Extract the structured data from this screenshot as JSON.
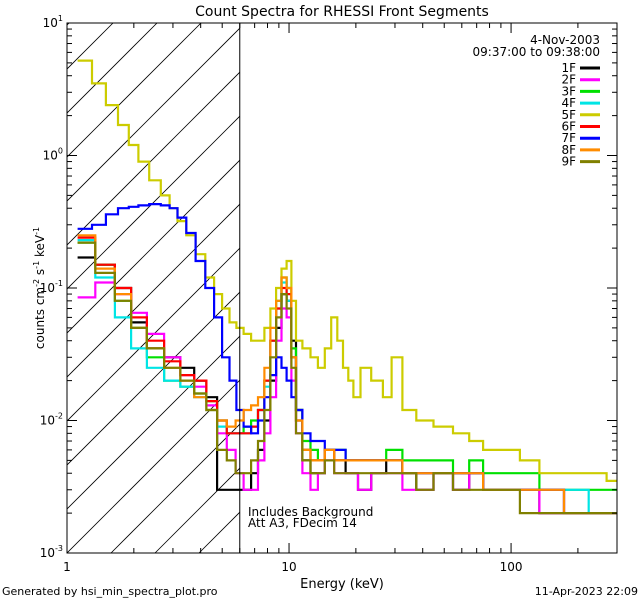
{
  "chart_data": {
    "type": "line",
    "title": "Count Spectra for RHESSI Front Segments",
    "xlabel": "Energy (keV)",
    "ylabel_main": "counts cm",
    "ylabel_sup1": "-2",
    "ylabel_mid": " s",
    "ylabel_sup2": "-1",
    "ylabel_end": " keV",
    "ylabel_sup3": "-1",
    "xscale": "log",
    "yscale": "log",
    "xlim": [
      1,
      300
    ],
    "ylim": [
      0.001,
      10
    ],
    "x_ticks": [
      {
        "value": 1,
        "label": "1"
      },
      {
        "value": 10,
        "label": "10"
      },
      {
        "value": 100,
        "label": "100"
      }
    ],
    "y_ticks": [
      {
        "value": 0.001,
        "base": "10",
        "exp": "-3"
      },
      {
        "value": 0.01,
        "base": "10",
        "exp": "-2"
      },
      {
        "value": 0.1,
        "base": "10",
        "exp": "-1"
      },
      {
        "value": 1,
        "base": "10",
        "exp": "0"
      },
      {
        "value": 10,
        "base": "10",
        "exp": "1"
      }
    ],
    "date": "4-Nov-2003",
    "time_range": "09:37:00 to 09:38:00",
    "attenuator_line_kev": 6,
    "annotation_line1": "Includes Background",
    "annotation_line2": "Att A3, FDecim 14",
    "series": [
      {
        "name": "1F",
        "color": "#000000",
        "x": [
          1.2,
          1.5,
          1.8,
          2.1,
          2.5,
          3.0,
          3.5,
          4.0,
          4.5,
          5.0,
          5.5,
          6.0,
          6.5,
          7.0,
          7.5,
          8.0,
          8.5,
          9.0,
          9.5,
          10,
          10.5,
          11,
          12,
          13,
          14,
          15,
          17,
          19,
          22,
          25,
          30,
          35,
          40,
          50,
          60,
          70,
          80,
          100,
          120,
          150,
          200,
          250,
          290
        ],
        "y": [
          0.17,
          0.15,
          0.1,
          0.055,
          0.035,
          0.03,
          0.025,
          0.02,
          0.015,
          0.003,
          0.003,
          0.003,
          0.003,
          0.004,
          0.006,
          0.01,
          0.02,
          0.05,
          0.09,
          0.08,
          0.04,
          0.012,
          0.005,
          0.004,
          0.004,
          0.006,
          0.005,
          0.004,
          0.003,
          0.004,
          0.005,
          0.004,
          0.003,
          0.004,
          0.003,
          0.004,
          0.003,
          0.003,
          0.003,
          0.002,
          0.002,
          0.002,
          0.002
        ]
      },
      {
        "name": "2F",
        "color": "#ff00ff",
        "x": [
          1.2,
          1.5,
          1.8,
          2.1,
          2.5,
          3.0,
          3.5,
          4.0,
          4.5,
          5.0,
          5.5,
          6.0,
          6.5,
          7.0,
          7.5,
          8.0,
          8.5,
          9.0,
          9.5,
          10,
          10.5,
          11,
          12,
          13,
          14,
          15,
          17,
          19,
          22,
          25,
          30,
          35,
          40,
          50,
          60,
          70,
          80,
          100,
          120,
          150,
          200,
          250,
          290
        ],
        "y": [
          0.085,
          0.11,
          0.09,
          0.065,
          0.045,
          0.03,
          0.022,
          0.018,
          0.013,
          0.008,
          0.006,
          0.004,
          0.003,
          0.003,
          0.005,
          0.008,
          0.015,
          0.04,
          0.07,
          0.06,
          0.02,
          0.008,
          0.004,
          0.003,
          0.004,
          0.005,
          0.004,
          0.004,
          0.003,
          0.004,
          0.004,
          0.003,
          0.003,
          0.004,
          0.003,
          0.004,
          0.003,
          0.003,
          0.003,
          0.002,
          0.002,
          0.002,
          0.002
        ]
      },
      {
        "name": "3F",
        "color": "#00e000",
        "x": [
          1.2,
          1.5,
          1.8,
          2.1,
          2.5,
          3.0,
          3.5,
          4.0,
          4.5,
          5.0,
          5.5,
          6.0,
          6.5,
          7.0,
          7.5,
          8.0,
          8.5,
          9.0,
          9.5,
          10,
          10.5,
          11,
          12,
          13,
          14,
          15,
          17,
          19,
          22,
          25,
          30,
          35,
          40,
          50,
          60,
          70,
          80,
          100,
          120,
          150,
          200,
          250,
          290
        ],
        "y": [
          0.22,
          0.15,
          0.08,
          0.05,
          0.03,
          0.02,
          0.018,
          0.016,
          0.014,
          0.01,
          0.008,
          0.008,
          0.009,
          0.01,
          0.012,
          0.02,
          0.04,
          0.08,
          0.12,
          0.1,
          0.035,
          0.012,
          0.007,
          0.006,
          0.005,
          0.006,
          0.006,
          0.005,
          0.005,
          0.005,
          0.006,
          0.005,
          0.005,
          0.005,
          0.004,
          0.005,
          0.004,
          0.004,
          0.004,
          0.003,
          0.003,
          0.003,
          0.003
        ]
      },
      {
        "name": "4F",
        "color": "#00e5e5",
        "x": [
          1.2,
          1.5,
          1.8,
          2.1,
          2.5,
          3.0,
          3.5,
          4.0,
          4.5,
          5.0,
          5.5,
          6.0,
          6.5,
          7.0,
          7.5,
          8.0,
          8.5,
          9.0,
          9.5,
          10,
          10.5,
          11,
          12,
          13,
          14,
          15,
          17,
          19,
          22,
          25,
          30,
          35,
          40,
          50,
          60,
          70,
          80,
          100,
          120,
          150,
          200,
          250,
          290
        ],
        "y": [
          0.23,
          0.12,
          0.06,
          0.035,
          0.025,
          0.02,
          0.018,
          0.015,
          0.012,
          0.009,
          0.008,
          0.008,
          0.008,
          0.009,
          0.012,
          0.018,
          0.04,
          0.07,
          0.11,
          0.08,
          0.03,
          0.01,
          0.006,
          0.005,
          0.005,
          0.006,
          0.005,
          0.005,
          0.005,
          0.005,
          0.005,
          0.004,
          0.004,
          0.004,
          0.004,
          0.004,
          0.003,
          0.003,
          0.003,
          0.003,
          0.003,
          0.002,
          0.002
        ]
      },
      {
        "name": "5F",
        "color": "#cccc00",
        "x": [
          1.2,
          1.4,
          1.6,
          1.8,
          2.0,
          2.2,
          2.5,
          2.8,
          3.0,
          3.3,
          3.6,
          4.0,
          4.4,
          4.8,
          5.2,
          5.6,
          6.0,
          6.5,
          7.0,
          7.5,
          8.0,
          8.5,
          9.0,
          9.5,
          10,
          10.5,
          11,
          12,
          13,
          14,
          15,
          16,
          17,
          18,
          19,
          20,
          22,
          25,
          28,
          30,
          35,
          40,
          50,
          60,
          70,
          80,
          100,
          120,
          150,
          200,
          250,
          290
        ],
        "y": [
          5.2,
          3.5,
          2.4,
          1.7,
          1.2,
          0.9,
          0.65,
          0.5,
          0.4,
          0.32,
          0.25,
          0.18,
          0.12,
          0.09,
          0.07,
          0.055,
          0.05,
          0.045,
          0.04,
          0.04,
          0.05,
          0.07,
          0.1,
          0.14,
          0.16,
          0.08,
          0.04,
          0.035,
          0.03,
          0.025,
          0.035,
          0.06,
          0.04,
          0.025,
          0.02,
          0.015,
          0.025,
          0.02,
          0.015,
          0.03,
          0.012,
          0.01,
          0.009,
          0.008,
          0.007,
          0.006,
          0.006,
          0.005,
          0.004,
          0.004,
          0.004,
          0.0035
        ]
      },
      {
        "name": "6F",
        "color": "#ff0000",
        "x": [
          1.2,
          1.5,
          1.8,
          2.1,
          2.5,
          3.0,
          3.5,
          4.0,
          4.5,
          5.0,
          5.5,
          6.0,
          6.5,
          7.0,
          7.5,
          8.0,
          8.5,
          9.0,
          9.5,
          10,
          10.5,
          11,
          12,
          13,
          14,
          15,
          17,
          19,
          22,
          25,
          30,
          35,
          40,
          50,
          60,
          70,
          80,
          100,
          120,
          150,
          200,
          250,
          290
        ],
        "y": [
          0.24,
          0.15,
          0.1,
          0.06,
          0.04,
          0.028,
          0.022,
          0.02,
          0.014,
          0.01,
          0.008,
          0.008,
          0.008,
          0.009,
          0.012,
          0.02,
          0.04,
          0.07,
          0.1,
          0.09,
          0.03,
          0.01,
          0.006,
          0.005,
          0.005,
          0.006,
          0.005,
          0.005,
          0.005,
          0.005,
          0.005,
          0.004,
          0.004,
          0.004,
          0.004,
          0.004,
          0.003,
          0.003,
          0.003,
          0.003,
          0.002,
          0.002,
          0.002
        ]
      },
      {
        "name": "7F",
        "color": "#0000ff",
        "x": [
          1.2,
          1.4,
          1.6,
          1.8,
          2.0,
          2.2,
          2.5,
          2.8,
          3.0,
          3.3,
          3.6,
          4.0,
          4.4,
          4.8,
          5.2,
          5.6,
          6.0,
          6.5,
          7.0,
          7.5,
          8.0,
          8.5,
          9.0,
          9.5,
          10,
          10.5,
          11,
          12,
          13,
          14,
          15,
          17,
          19,
          22,
          25,
          30,
          35,
          40,
          50,
          60,
          70,
          80,
          100,
          120,
          150,
          200,
          250,
          290
        ],
        "y": [
          0.28,
          0.3,
          0.36,
          0.4,
          0.41,
          0.42,
          0.43,
          0.42,
          0.4,
          0.34,
          0.26,
          0.16,
          0.1,
          0.06,
          0.03,
          0.02,
          0.012,
          0.009,
          0.008,
          0.01,
          0.015,
          0.022,
          0.03,
          0.025,
          0.02,
          0.015,
          0.012,
          0.008,
          0.007,
          0.007,
          0.006,
          0.006,
          0.005,
          0.005,
          0.005,
          0.005,
          0.004,
          0.004,
          0.004,
          0.004,
          0.004,
          0.003,
          0.003,
          0.003,
          0.003,
          0.002,
          0.002,
          0.002
        ]
      },
      {
        "name": "8F",
        "color": "#ff8c00",
        "x": [
          1.2,
          1.5,
          1.8,
          2.1,
          2.5,
          3.0,
          3.5,
          4.0,
          4.5,
          5.0,
          5.5,
          6.0,
          6.5,
          7.0,
          7.5,
          8.0,
          8.5,
          9.0,
          9.5,
          10,
          10.5,
          11,
          12,
          13,
          14,
          15,
          17,
          19,
          22,
          25,
          30,
          35,
          40,
          50,
          60,
          70,
          80,
          100,
          120,
          150,
          200,
          250,
          290
        ],
        "y": [
          0.25,
          0.14,
          0.09,
          0.05,
          0.035,
          0.025,
          0.02,
          0.015,
          0.012,
          0.01,
          0.009,
          0.01,
          0.012,
          0.013,
          0.015,
          0.025,
          0.05,
          0.08,
          0.12,
          0.1,
          0.03,
          0.01,
          0.006,
          0.005,
          0.005,
          0.006,
          0.005,
          0.005,
          0.005,
          0.005,
          0.005,
          0.004,
          0.004,
          0.004,
          0.004,
          0.004,
          0.003,
          0.003,
          0.003,
          0.003,
          0.002,
          0.002,
          0.002
        ]
      },
      {
        "name": "9F",
        "color": "#808000",
        "x": [
          1.2,
          1.5,
          1.8,
          2.1,
          2.5,
          3.0,
          3.5,
          4.0,
          4.5,
          5.0,
          5.5,
          6.0,
          6.5,
          7.0,
          7.5,
          8.0,
          8.5,
          9.0,
          9.5,
          10,
          10.5,
          11,
          12,
          13,
          14,
          15,
          17,
          19,
          22,
          25,
          30,
          35,
          40,
          50,
          60,
          70,
          80,
          100,
          120,
          150,
          200,
          250,
          290
        ],
        "y": [
          0.22,
          0.13,
          0.08,
          0.05,
          0.035,
          0.025,
          0.02,
          0.016,
          0.012,
          0.006,
          0.005,
          0.004,
          0.004,
          0.005,
          0.007,
          0.012,
          0.03,
          0.06,
          0.09,
          0.07,
          0.025,
          0.008,
          0.005,
          0.004,
          0.004,
          0.005,
          0.004,
          0.004,
          0.004,
          0.004,
          0.004,
          0.004,
          0.003,
          0.004,
          0.003,
          0.003,
          0.003,
          0.003,
          0.002,
          0.002,
          0.002,
          0.002,
          0.002
        ]
      }
    ]
  },
  "footer": {
    "generated_by": "Generated by hsi_min_spectra_plot.pro",
    "timestamp": "11-Apr-2023 22:09"
  }
}
